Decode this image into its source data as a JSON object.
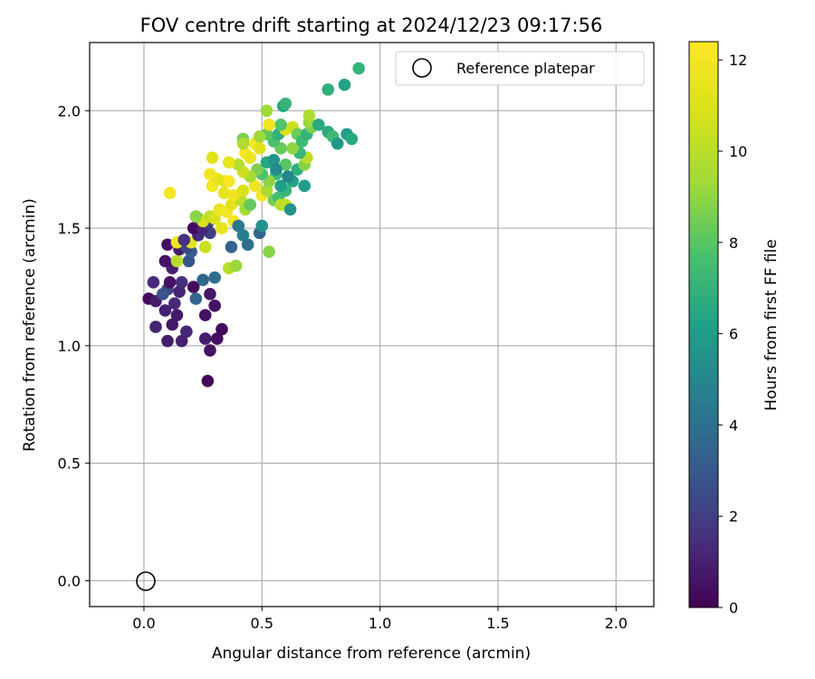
{
  "chart_data": {
    "type": "scatter",
    "title": "FOV centre drift starting at 2024/12/23 09:17:56",
    "xlabel": "Angular distance from reference (arcmin)",
    "ylabel": "Rotation from reference (arcmin)",
    "xlim": [
      -0.23,
      2.16
    ],
    "ylim": [
      -0.11,
      2.29
    ],
    "xticks": [
      "0.0",
      "0.5",
      "1.0",
      "1.5",
      "2.0"
    ],
    "yticks": [
      "0.0",
      "0.5",
      "1.0",
      "1.5",
      "2.0"
    ],
    "grid": true,
    "colormap": "viridis",
    "colorbar": {
      "label": "Hours from first FF file",
      "range": [
        0,
        12.4
      ],
      "ticks": [
        "0",
        "2",
        "4",
        "6",
        "8",
        "10",
        "12"
      ]
    },
    "legend": {
      "position": "top-right",
      "entries": [
        "Reference platepar"
      ]
    },
    "reference_point": {
      "x": 0.0,
      "y": 0.0
    },
    "points": [
      {
        "x": 0.27,
        "y": 0.85,
        "h": 0.1
      },
      {
        "x": 0.28,
        "y": 0.98,
        "h": 0.6
      },
      {
        "x": 0.26,
        "y": 1.03,
        "h": 0.9
      },
      {
        "x": 0.31,
        "y": 1.03,
        "h": 0.4
      },
      {
        "x": 0.33,
        "y": 1.07,
        "h": 0.3
      },
      {
        "x": 0.1,
        "y": 1.02,
        "h": 0.9
      },
      {
        "x": 0.16,
        "y": 1.02,
        "h": 1.0
      },
      {
        "x": 0.05,
        "y": 1.08,
        "h": 1.1
      },
      {
        "x": 0.12,
        "y": 1.09,
        "h": 0.7
      },
      {
        "x": 0.18,
        "y": 1.06,
        "h": 1.2
      },
      {
        "x": 0.14,
        "y": 1.13,
        "h": 0.8
      },
      {
        "x": 0.26,
        "y": 1.13,
        "h": 0.5
      },
      {
        "x": 0.3,
        "y": 1.17,
        "h": 0.6
      },
      {
        "x": 0.09,
        "y": 1.15,
        "h": 1.0
      },
      {
        "x": 0.13,
        "y": 1.18,
        "h": 1.3
      },
      {
        "x": 0.02,
        "y": 1.2,
        "h": 0.3
      },
      {
        "x": 0.05,
        "y": 1.19,
        "h": 0.9
      },
      {
        "x": 0.22,
        "y": 1.2,
        "h": 3.5
      },
      {
        "x": 0.28,
        "y": 1.22,
        "h": 0.7
      },
      {
        "x": 0.15,
        "y": 1.23,
        "h": 1.1
      },
      {
        "x": 0.1,
        "y": 1.24,
        "h": 2.2
      },
      {
        "x": 0.08,
        "y": 1.22,
        "h": 2.8
      },
      {
        "x": 0.21,
        "y": 1.25,
        "h": 0.2
      },
      {
        "x": 0.04,
        "y": 1.27,
        "h": 1.4
      },
      {
        "x": 0.11,
        "y": 1.27,
        "h": 0.5
      },
      {
        "x": 0.16,
        "y": 1.27,
        "h": 1.5
      },
      {
        "x": 0.25,
        "y": 1.28,
        "h": 3.6
      },
      {
        "x": 0.3,
        "y": 1.29,
        "h": 3.9
      },
      {
        "x": 0.12,
        "y": 1.33,
        "h": 1.0
      },
      {
        "x": 0.09,
        "y": 1.36,
        "h": 0.6
      },
      {
        "x": 0.19,
        "y": 1.36,
        "h": 2.9
      },
      {
        "x": 0.14,
        "y": 1.36,
        "h": 9.9
      },
      {
        "x": 0.15,
        "y": 1.41,
        "h": 0.8
      },
      {
        "x": 0.2,
        "y": 1.4,
        "h": 3.1
      },
      {
        "x": 0.18,
        "y": 1.42,
        "h": 2.3
      },
      {
        "x": 0.26,
        "y": 1.42,
        "h": 10.5
      },
      {
        "x": 0.37,
        "y": 1.42,
        "h": 3.4
      },
      {
        "x": 0.1,
        "y": 1.43,
        "h": 0.4
      },
      {
        "x": 0.14,
        "y": 1.44,
        "h": 11.8
      },
      {
        "x": 0.2,
        "y": 1.44,
        "h": 11.2
      },
      {
        "x": 0.17,
        "y": 1.45,
        "h": 1.6
      },
      {
        "x": 0.23,
        "y": 1.47,
        "h": 1.3
      },
      {
        "x": 0.28,
        "y": 1.48,
        "h": 2.0
      },
      {
        "x": 0.21,
        "y": 1.5,
        "h": 0.3
      },
      {
        "x": 0.25,
        "y": 1.5,
        "h": 1.2
      },
      {
        "x": 0.27,
        "y": 1.52,
        "h": 1.9
      },
      {
        "x": 0.33,
        "y": 1.5,
        "h": 11.5
      },
      {
        "x": 0.38,
        "y": 1.53,
        "h": 12.1
      },
      {
        "x": 0.4,
        "y": 1.51,
        "h": 4.2
      },
      {
        "x": 0.42,
        "y": 1.47,
        "h": 4.7
      },
      {
        "x": 0.44,
        "y": 1.43,
        "h": 4.0
      },
      {
        "x": 0.49,
        "y": 1.48,
        "h": 3.5
      },
      {
        "x": 0.5,
        "y": 1.51,
        "h": 5.5
      },
      {
        "x": 0.23,
        "y": 1.54,
        "h": 1.5
      },
      {
        "x": 0.25,
        "y": 1.53,
        "h": 11.0
      },
      {
        "x": 0.28,
        "y": 1.55,
        "h": 10.2
      },
      {
        "x": 0.3,
        "y": 1.54,
        "h": 10.8
      },
      {
        "x": 0.22,
        "y": 1.55,
        "h": 8.9
      },
      {
        "x": 0.32,
        "y": 1.58,
        "h": 11.7
      },
      {
        "x": 0.35,
        "y": 1.57,
        "h": 12.0
      },
      {
        "x": 0.37,
        "y": 1.6,
        "h": 11.3
      },
      {
        "x": 0.41,
        "y": 1.62,
        "h": 10.1
      },
      {
        "x": 0.43,
        "y": 1.58,
        "h": 9.4
      },
      {
        "x": 0.45,
        "y": 1.6,
        "h": 8.2
      },
      {
        "x": 0.36,
        "y": 1.33,
        "h": 10.0
      },
      {
        "x": 0.39,
        "y": 1.34,
        "h": 9.2
      },
      {
        "x": 0.53,
        "y": 1.4,
        "h": 8.9
      },
      {
        "x": 0.11,
        "y": 1.65,
        "h": 12.1
      },
      {
        "x": 0.29,
        "y": 1.68,
        "h": 12.0
      },
      {
        "x": 0.31,
        "y": 1.71,
        "h": 11.6
      },
      {
        "x": 0.34,
        "y": 1.7,
        "h": 11.1
      },
      {
        "x": 0.36,
        "y": 1.7,
        "h": 12.2
      },
      {
        "x": 0.34,
        "y": 1.65,
        "h": 11.4
      },
      {
        "x": 0.38,
        "y": 1.64,
        "h": 11.8
      },
      {
        "x": 0.42,
        "y": 1.66,
        "h": 11.0
      },
      {
        "x": 0.47,
        "y": 1.68,
        "h": 11.9
      },
      {
        "x": 0.5,
        "y": 1.64,
        "h": 12.0
      },
      {
        "x": 0.52,
        "y": 1.66,
        "h": 9.6
      },
      {
        "x": 0.55,
        "y": 1.62,
        "h": 8.5
      },
      {
        "x": 0.57,
        "y": 1.63,
        "h": 7.5
      },
      {
        "x": 0.58,
        "y": 1.6,
        "h": 9.8
      },
      {
        "x": 0.6,
        "y": 1.6,
        "h": 10.3
      },
      {
        "x": 0.62,
        "y": 1.58,
        "h": 5.5
      },
      {
        "x": 0.6,
        "y": 1.66,
        "h": 7.1
      },
      {
        "x": 0.63,
        "y": 1.7,
        "h": 6.3
      },
      {
        "x": 0.58,
        "y": 1.68,
        "h": 6.0
      },
      {
        "x": 0.56,
        "y": 1.73,
        "h": 7.3
      },
      {
        "x": 0.53,
        "y": 1.7,
        "h": 9.0
      },
      {
        "x": 0.5,
        "y": 1.73,
        "h": 7.8
      },
      {
        "x": 0.48,
        "y": 1.75,
        "h": 8.7
      },
      {
        "x": 0.45,
        "y": 1.72,
        "h": 9.5
      },
      {
        "x": 0.42,
        "y": 1.74,
        "h": 10.6
      },
      {
        "x": 0.4,
        "y": 1.77,
        "h": 9.9
      },
      {
        "x": 0.36,
        "y": 1.78,
        "h": 11.5
      },
      {
        "x": 0.28,
        "y": 1.73,
        "h": 11.9
      },
      {
        "x": 0.29,
        "y": 1.8,
        "h": 11.3
      },
      {
        "x": 0.43,
        "y": 1.82,
        "h": 12.1
      },
      {
        "x": 0.47,
        "y": 1.86,
        "h": 12.0
      },
      {
        "x": 0.49,
        "y": 1.84,
        "h": 11.2
      },
      {
        "x": 0.45,
        "y": 1.8,
        "h": 11.6
      },
      {
        "x": 0.52,
        "y": 1.78,
        "h": 6.5
      },
      {
        "x": 0.55,
        "y": 1.79,
        "h": 5.7
      },
      {
        "x": 0.6,
        "y": 1.77,
        "h": 8.0
      },
      {
        "x": 0.65,
        "y": 1.75,
        "h": 6.8
      },
      {
        "x": 0.68,
        "y": 1.77,
        "h": 8.8
      },
      {
        "x": 0.69,
        "y": 1.8,
        "h": 10.1
      },
      {
        "x": 0.66,
        "y": 1.82,
        "h": 7.2
      },
      {
        "x": 0.63,
        "y": 1.84,
        "h": 9.0
      },
      {
        "x": 0.58,
        "y": 1.84,
        "h": 8.3
      },
      {
        "x": 0.55,
        "y": 1.87,
        "h": 7.7
      },
      {
        "x": 0.52,
        "y": 1.9,
        "h": 8.1
      },
      {
        "x": 0.49,
        "y": 1.89,
        "h": 9.3
      },
      {
        "x": 0.42,
        "y": 1.88,
        "h": 8.6
      },
      {
        "x": 0.42,
        "y": 1.86,
        "h": 9.7
      },
      {
        "x": 0.57,
        "y": 1.9,
        "h": 6.9
      },
      {
        "x": 0.6,
        "y": 1.92,
        "h": 11.1
      },
      {
        "x": 0.58,
        "y": 1.94,
        "h": 7.9
      },
      {
        "x": 0.63,
        "y": 1.93,
        "h": 10.5
      },
      {
        "x": 0.65,
        "y": 1.9,
        "h": 8.4
      },
      {
        "x": 0.67,
        "y": 1.87,
        "h": 7.4
      },
      {
        "x": 0.69,
        "y": 1.9,
        "h": 7.0
      },
      {
        "x": 0.71,
        "y": 1.93,
        "h": 8.6
      },
      {
        "x": 0.7,
        "y": 1.95,
        "h": 9.2
      },
      {
        "x": 0.74,
        "y": 1.94,
        "h": 6.6
      },
      {
        "x": 0.53,
        "y": 1.94,
        "h": 11.8
      },
      {
        "x": 0.52,
        "y": 2.0,
        "h": 9.3
      },
      {
        "x": 0.59,
        "y": 2.02,
        "h": 6.4
      },
      {
        "x": 0.6,
        "y": 2.03,
        "h": 7.1
      },
      {
        "x": 0.7,
        "y": 1.98,
        "h": 9.7
      },
      {
        "x": 0.78,
        "y": 1.91,
        "h": 6.7
      },
      {
        "x": 0.8,
        "y": 1.89,
        "h": 7.3
      },
      {
        "x": 0.82,
        "y": 1.86,
        "h": 5.9
      },
      {
        "x": 0.86,
        "y": 1.9,
        "h": 6.1
      },
      {
        "x": 0.88,
        "y": 1.88,
        "h": 6.6
      },
      {
        "x": 0.78,
        "y": 2.09,
        "h": 6.9
      },
      {
        "x": 0.85,
        "y": 2.11,
        "h": 6.3
      },
      {
        "x": 0.91,
        "y": 2.18,
        "h": 7.0
      },
      {
        "x": 0.68,
        "y": 1.68,
        "h": 6.0
      },
      {
        "x": 0.61,
        "y": 1.72,
        "h": 5.0
      },
      {
        "x": 0.56,
        "y": 1.75,
        "h": 5.3
      }
    ]
  }
}
